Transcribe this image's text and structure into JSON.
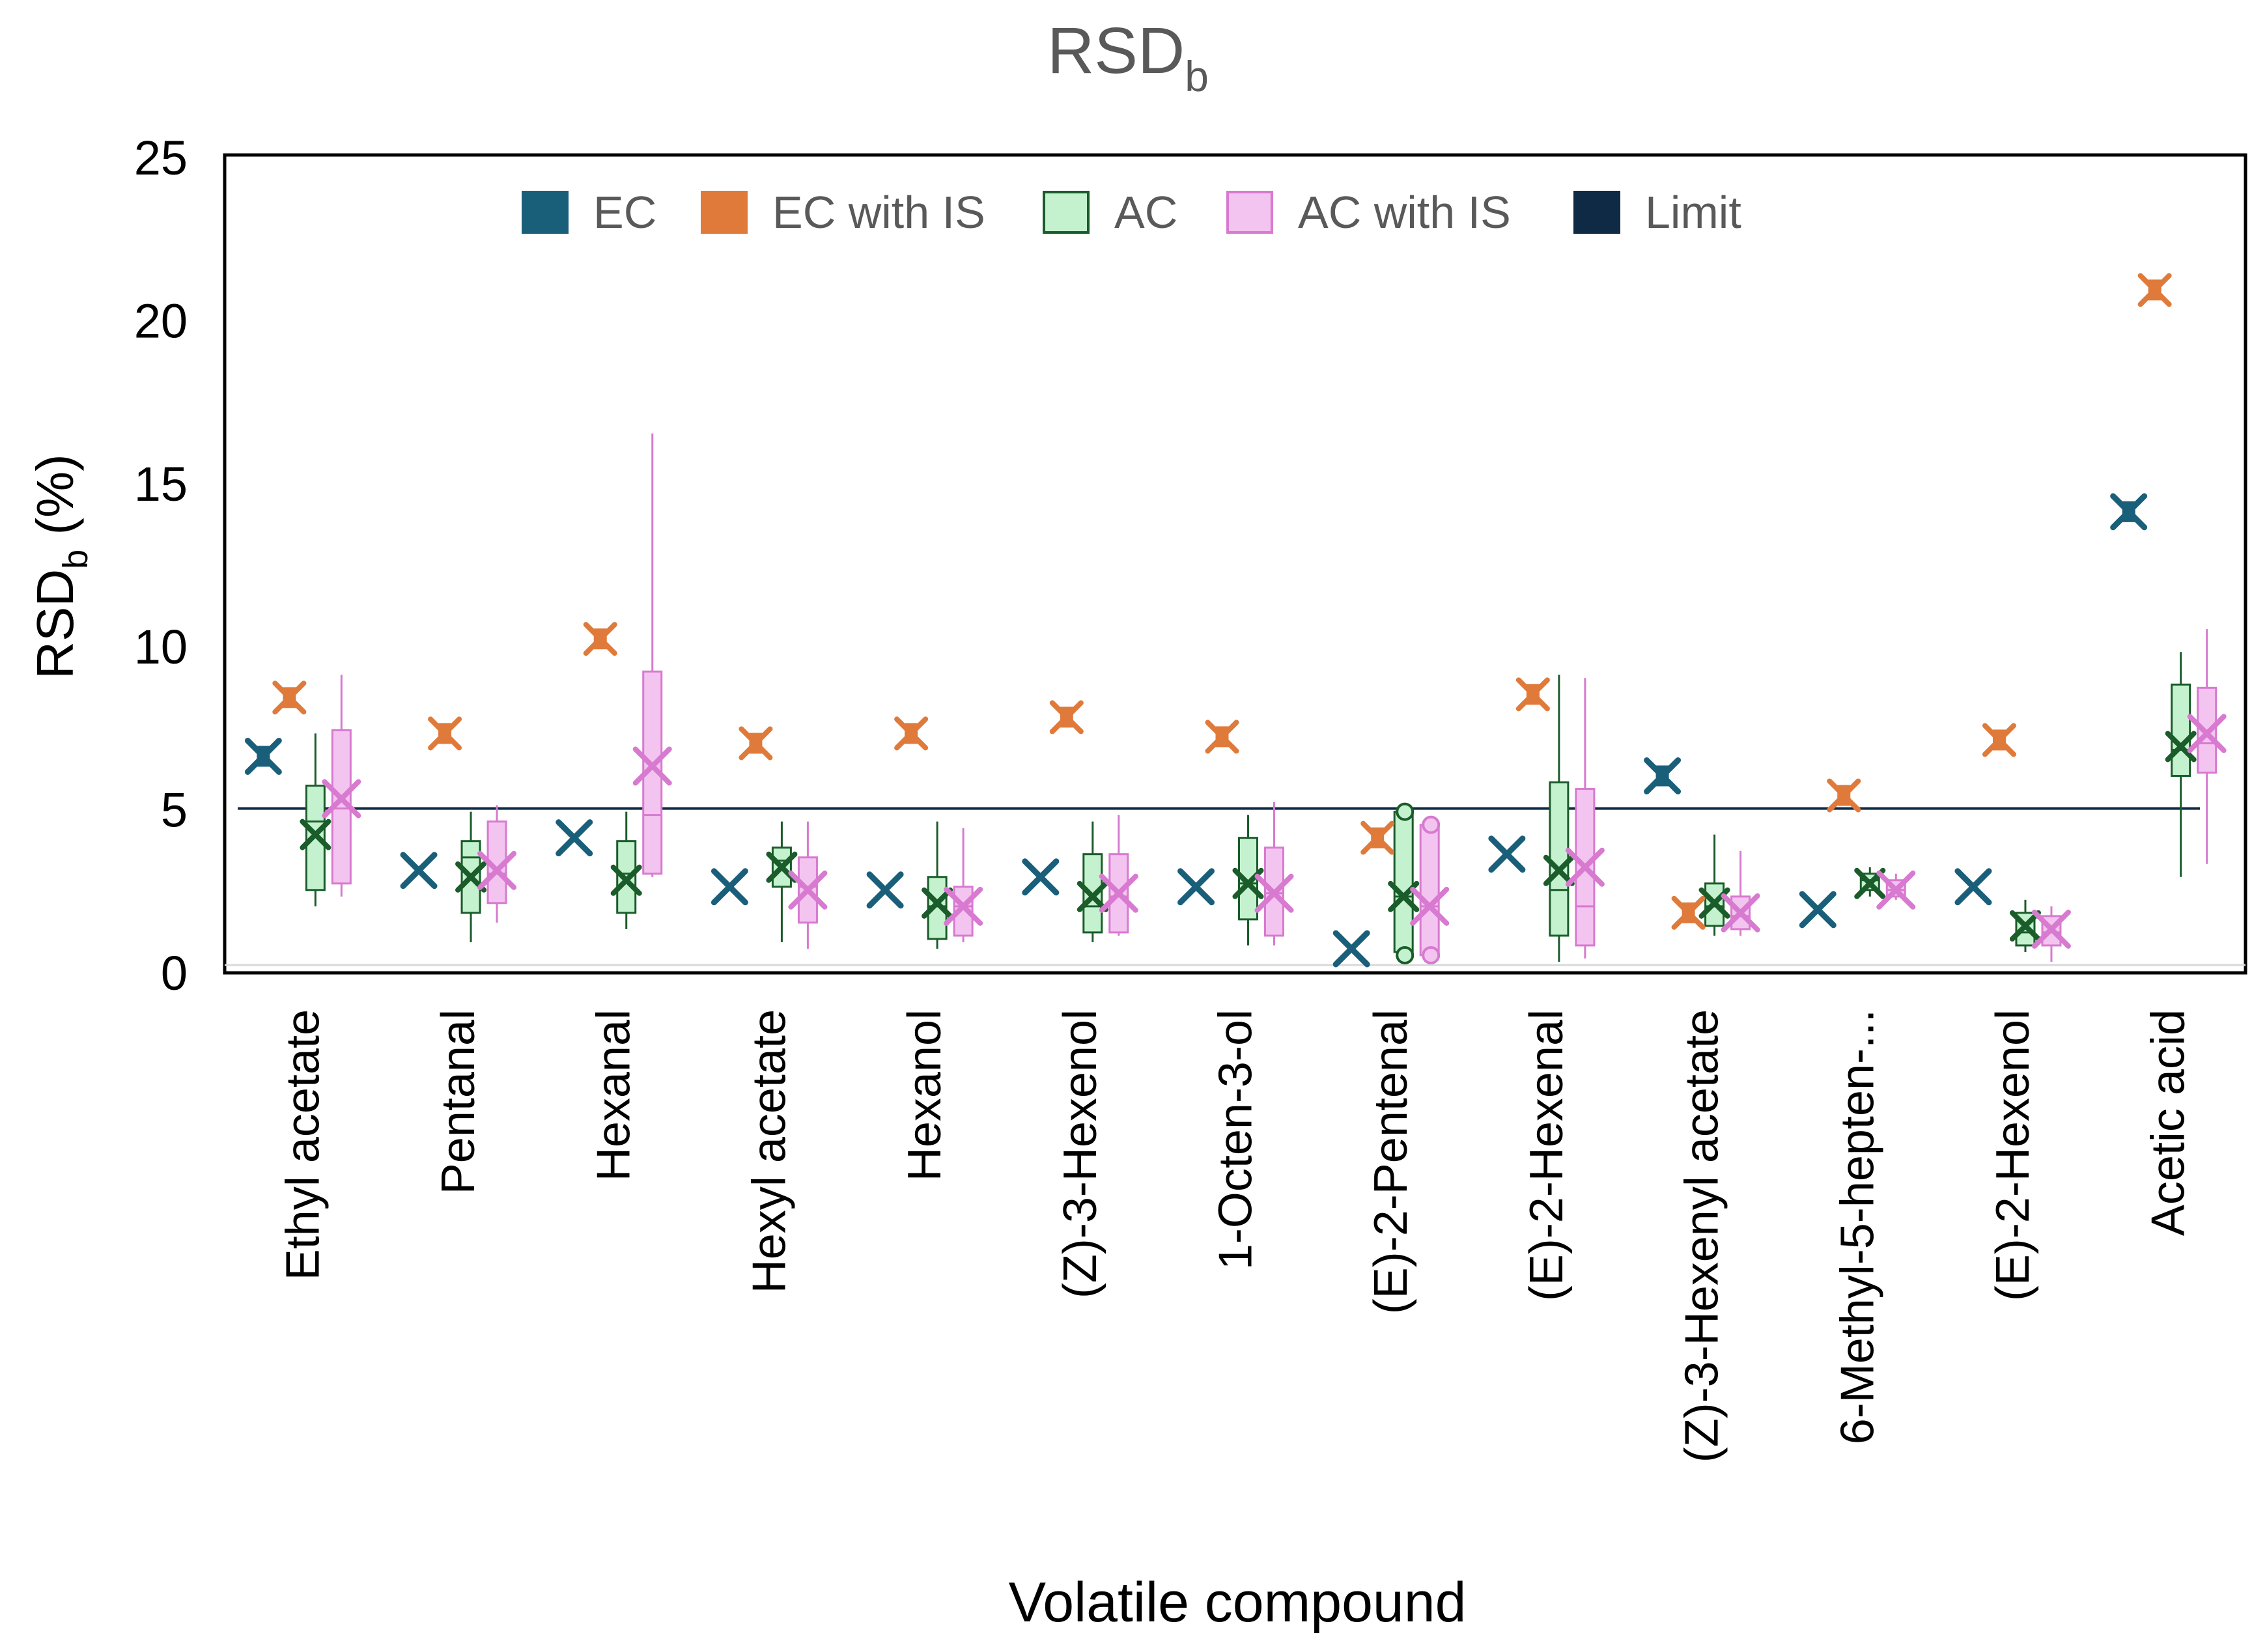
{
  "chart_data": {
    "type": "box",
    "title": "RSD",
    "title_subscript": "b",
    "xlabel": "Volatile compound",
    "ylabel_main": "RSD",
    "ylabel_subscript": "b",
    "ylabel_suffix": " (%)",
    "ylim": [
      0,
      25
    ],
    "yticks": [
      0,
      5,
      10,
      15,
      20,
      25
    ],
    "legend_position": "top",
    "legend": [
      {
        "key": "EC",
        "label": "EC",
        "color": "#1a5f7a"
      },
      {
        "key": "ECIS",
        "label": "EC with IS",
        "color": "#e07a3a"
      },
      {
        "key": "AC",
        "label": "AC",
        "color": "#c4f2cf",
        "edge": "#1a5c2a"
      },
      {
        "key": "ACIS",
        "label": "AC with IS",
        "color": "#f3c4ef",
        "edge": "#d77ad0"
      },
      {
        "key": "Limit",
        "label": "Limit",
        "color": "#0f2a44"
      }
    ],
    "limit": 5,
    "categories": [
      "Ethyl acetate",
      "Pentanal",
      "Hexanal",
      "Hexyl acetate",
      "Hexanol",
      "(Z)-3-Hexenol",
      "1-Octen-3-ol",
      "(E)-2-Pentenal",
      "(E)-2-Hexenal",
      "(Z)-3-Hexenyl acetate",
      "6-Methyl-5-hepten-...",
      "(E)-2-Hexenol",
      "Acetic acid"
    ],
    "series": [
      {
        "name": "EC",
        "mean": [
          6.6,
          3.1,
          4.1,
          2.6,
          2.5,
          2.9,
          2.6,
          0.7,
          3.6,
          6.0,
          1.9,
          2.6,
          14.1
        ]
      },
      {
        "name": "EC with IS",
        "mean": [
          8.4,
          7.3,
          10.2,
          7.0,
          7.3,
          7.8,
          7.2,
          4.1,
          8.5,
          1.8,
          5.4,
          7.1,
          20.9
        ]
      },
      {
        "name": "AC",
        "boxes": [
          {
            "min": 2.0,
            "q1": 2.5,
            "median": 4.6,
            "q3": 5.7,
            "max": 7.3,
            "mean": 4.2
          },
          {
            "min": 0.9,
            "q1": 1.8,
            "median": 3.5,
            "q3": 4.0,
            "max": 4.9,
            "mean": 2.9
          },
          {
            "min": 1.3,
            "q1": 1.8,
            "median": 3.0,
            "q3": 4.0,
            "max": 4.9,
            "mean": 2.8
          },
          {
            "min": 0.9,
            "q1": 2.6,
            "median": 3.4,
            "q3": 3.8,
            "max": 4.6,
            "mean": 3.2
          },
          {
            "min": 0.7,
            "q1": 1.0,
            "median": 2.0,
            "q3": 2.9,
            "max": 4.6,
            "mean": 2.1
          },
          {
            "min": 0.9,
            "q1": 1.2,
            "median": 2.0,
            "q3": 3.6,
            "max": 4.6,
            "mean": 2.3
          },
          {
            "min": 0.8,
            "q1": 1.6,
            "median": 2.7,
            "q3": 4.1,
            "max": 4.8,
            "mean": 2.7
          },
          {
            "min": 0.5,
            "q1": 0.6,
            "median": 2.3,
            "q3": 4.9,
            "max": 5.0,
            "mean": 2.3,
            "outliers": [
              0.5,
              4.9
            ]
          },
          {
            "min": 0.3,
            "q1": 1.1,
            "median": 2.5,
            "q3": 5.8,
            "max": 9.1,
            "mean": 3.1
          },
          {
            "min": 1.1,
            "q1": 1.4,
            "median": 2.0,
            "q3": 2.7,
            "max": 4.2,
            "mean": 2.1
          },
          {
            "min": 2.3,
            "q1": 2.5,
            "median": 2.8,
            "q3": 3.0,
            "max": 3.2,
            "mean": 2.7
          },
          {
            "min": 0.6,
            "q1": 0.8,
            "median": 1.2,
            "q3": 1.8,
            "max": 2.2,
            "mean": 1.4
          },
          {
            "min": 2.9,
            "q1": 6.0,
            "median": 6.8,
            "q3": 8.8,
            "max": 9.8,
            "mean": 6.9
          }
        ]
      },
      {
        "name": "AC with IS",
        "boxes": [
          {
            "min": 2.3,
            "q1": 2.7,
            "median": 5.0,
            "q3": 7.4,
            "max": 9.1,
            "mean": 5.3
          },
          {
            "min": 1.5,
            "q1": 2.1,
            "median": 3.0,
            "q3": 4.6,
            "max": 5.1,
            "mean": 3.1
          },
          {
            "min": 2.9,
            "q1": 3.0,
            "median": 4.8,
            "q3": 9.2,
            "max": 16.5,
            "mean": 6.3
          },
          {
            "min": 0.7,
            "q1": 1.5,
            "median": 2.6,
            "q3": 3.5,
            "max": 4.6,
            "mean": 2.5
          },
          {
            "min": 0.9,
            "q1": 1.1,
            "median": 2.0,
            "q3": 2.6,
            "max": 4.4,
            "mean": 2.0
          },
          {
            "min": 1.1,
            "q1": 1.2,
            "median": 2.3,
            "q3": 3.6,
            "max": 4.8,
            "mean": 2.4
          },
          {
            "min": 0.8,
            "q1": 1.1,
            "median": 2.4,
            "q3": 3.8,
            "max": 5.2,
            "mean": 2.4
          },
          {
            "min": 0.5,
            "q1": 0.5,
            "median": 2.0,
            "q3": 4.5,
            "max": 4.5,
            "mean": 2.0,
            "outliers": [
              0.5,
              4.5
            ]
          },
          {
            "min": 0.4,
            "q1": 0.8,
            "median": 2.0,
            "q3": 5.6,
            "max": 9.0,
            "mean": 3.2
          },
          {
            "min": 1.1,
            "q1": 1.3,
            "median": 1.7,
            "q3": 2.3,
            "max": 3.7,
            "mean": 1.8
          },
          {
            "min": 2.2,
            "q1": 2.3,
            "median": 2.5,
            "q3": 2.8,
            "max": 3.0,
            "mean": 2.5
          },
          {
            "min": 0.3,
            "q1": 0.8,
            "median": 1.2,
            "q3": 1.7,
            "max": 2.0,
            "mean": 1.3
          },
          {
            "min": 3.3,
            "q1": 6.1,
            "median": 7.0,
            "q3": 8.7,
            "max": 10.5,
            "mean": 7.3
          }
        ]
      }
    ]
  }
}
